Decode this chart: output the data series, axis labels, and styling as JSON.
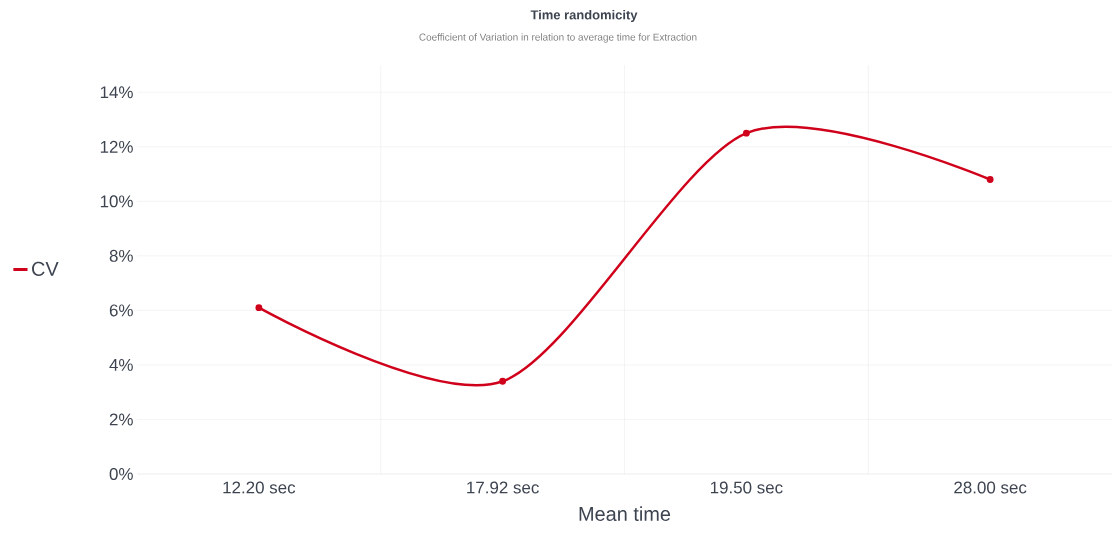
{
  "chart_data": {
    "type": "line",
    "title": "Time randomicity",
    "subtitle": "Coefficient of Variation in relation to average time for Extraction",
    "xlabel": "Mean time",
    "categories": [
      "12.20 sec",
      "17.92 sec",
      "19.50 sec",
      "28.00 sec"
    ],
    "series": [
      {
        "name": "CV",
        "color": "#d0021b",
        "values": [
          6.1,
          3.4,
          12.5,
          10.8
        ]
      }
    ],
    "ylim": [
      0,
      15
    ],
    "yticks": [
      {
        "value": 0,
        "label": "0%"
      },
      {
        "value": 2,
        "label": "2%"
      },
      {
        "value": 4,
        "label": "4%"
      },
      {
        "value": 6,
        "label": "6%"
      },
      {
        "value": 8,
        "label": "8%"
      },
      {
        "value": 10,
        "label": "10%"
      },
      {
        "value": 12,
        "label": "12%"
      },
      {
        "value": 14,
        "label": "14%"
      }
    ],
    "grid": true,
    "legend": "left",
    "marker": "circle",
    "line_style": "solid"
  }
}
